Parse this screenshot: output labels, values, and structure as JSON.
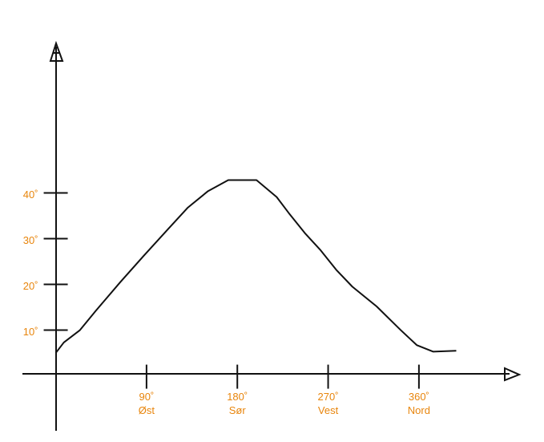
{
  "chart_data": {
    "type": "line",
    "x": [
      0,
      8,
      24,
      40,
      64,
      87,
      111,
      131,
      151,
      171,
      199,
      219,
      231,
      247,
      262,
      278,
      294,
      318,
      342,
      358,
      374,
      397
    ],
    "series": [
      {
        "color": "#111111",
        "values": [
          5,
          7.3,
          10,
          14.3,
          20.5,
          26.2,
          32,
          36.8,
          40.4,
          42.8,
          42.8,
          39.1,
          35.6,
          31.2,
          27.6,
          23.2,
          19.5,
          15.2,
          10,
          6.7,
          5.3,
          5.5
        ]
      }
    ],
    "xlim": [
      -33,
      453
    ],
    "ylim": [
      -12,
      72
    ],
    "xticks": [
      {
        "value": 90,
        "label": "90˚"
      },
      {
        "value": 180,
        "label": "180˚"
      },
      {
        "value": 270,
        "label": "270˚"
      },
      {
        "value": 360,
        "label": "360˚"
      }
    ],
    "xtick_names": [
      "Øst",
      "Sør",
      "Vest",
      "Nord"
    ],
    "yticks": [
      {
        "value": 10,
        "label": "10˚"
      },
      {
        "value": 20,
        "label": "20˚"
      },
      {
        "value": 30,
        "label": "30˚"
      },
      {
        "value": 40,
        "label": "40˚"
      }
    ],
    "tick_label_color": "#e8850c"
  }
}
